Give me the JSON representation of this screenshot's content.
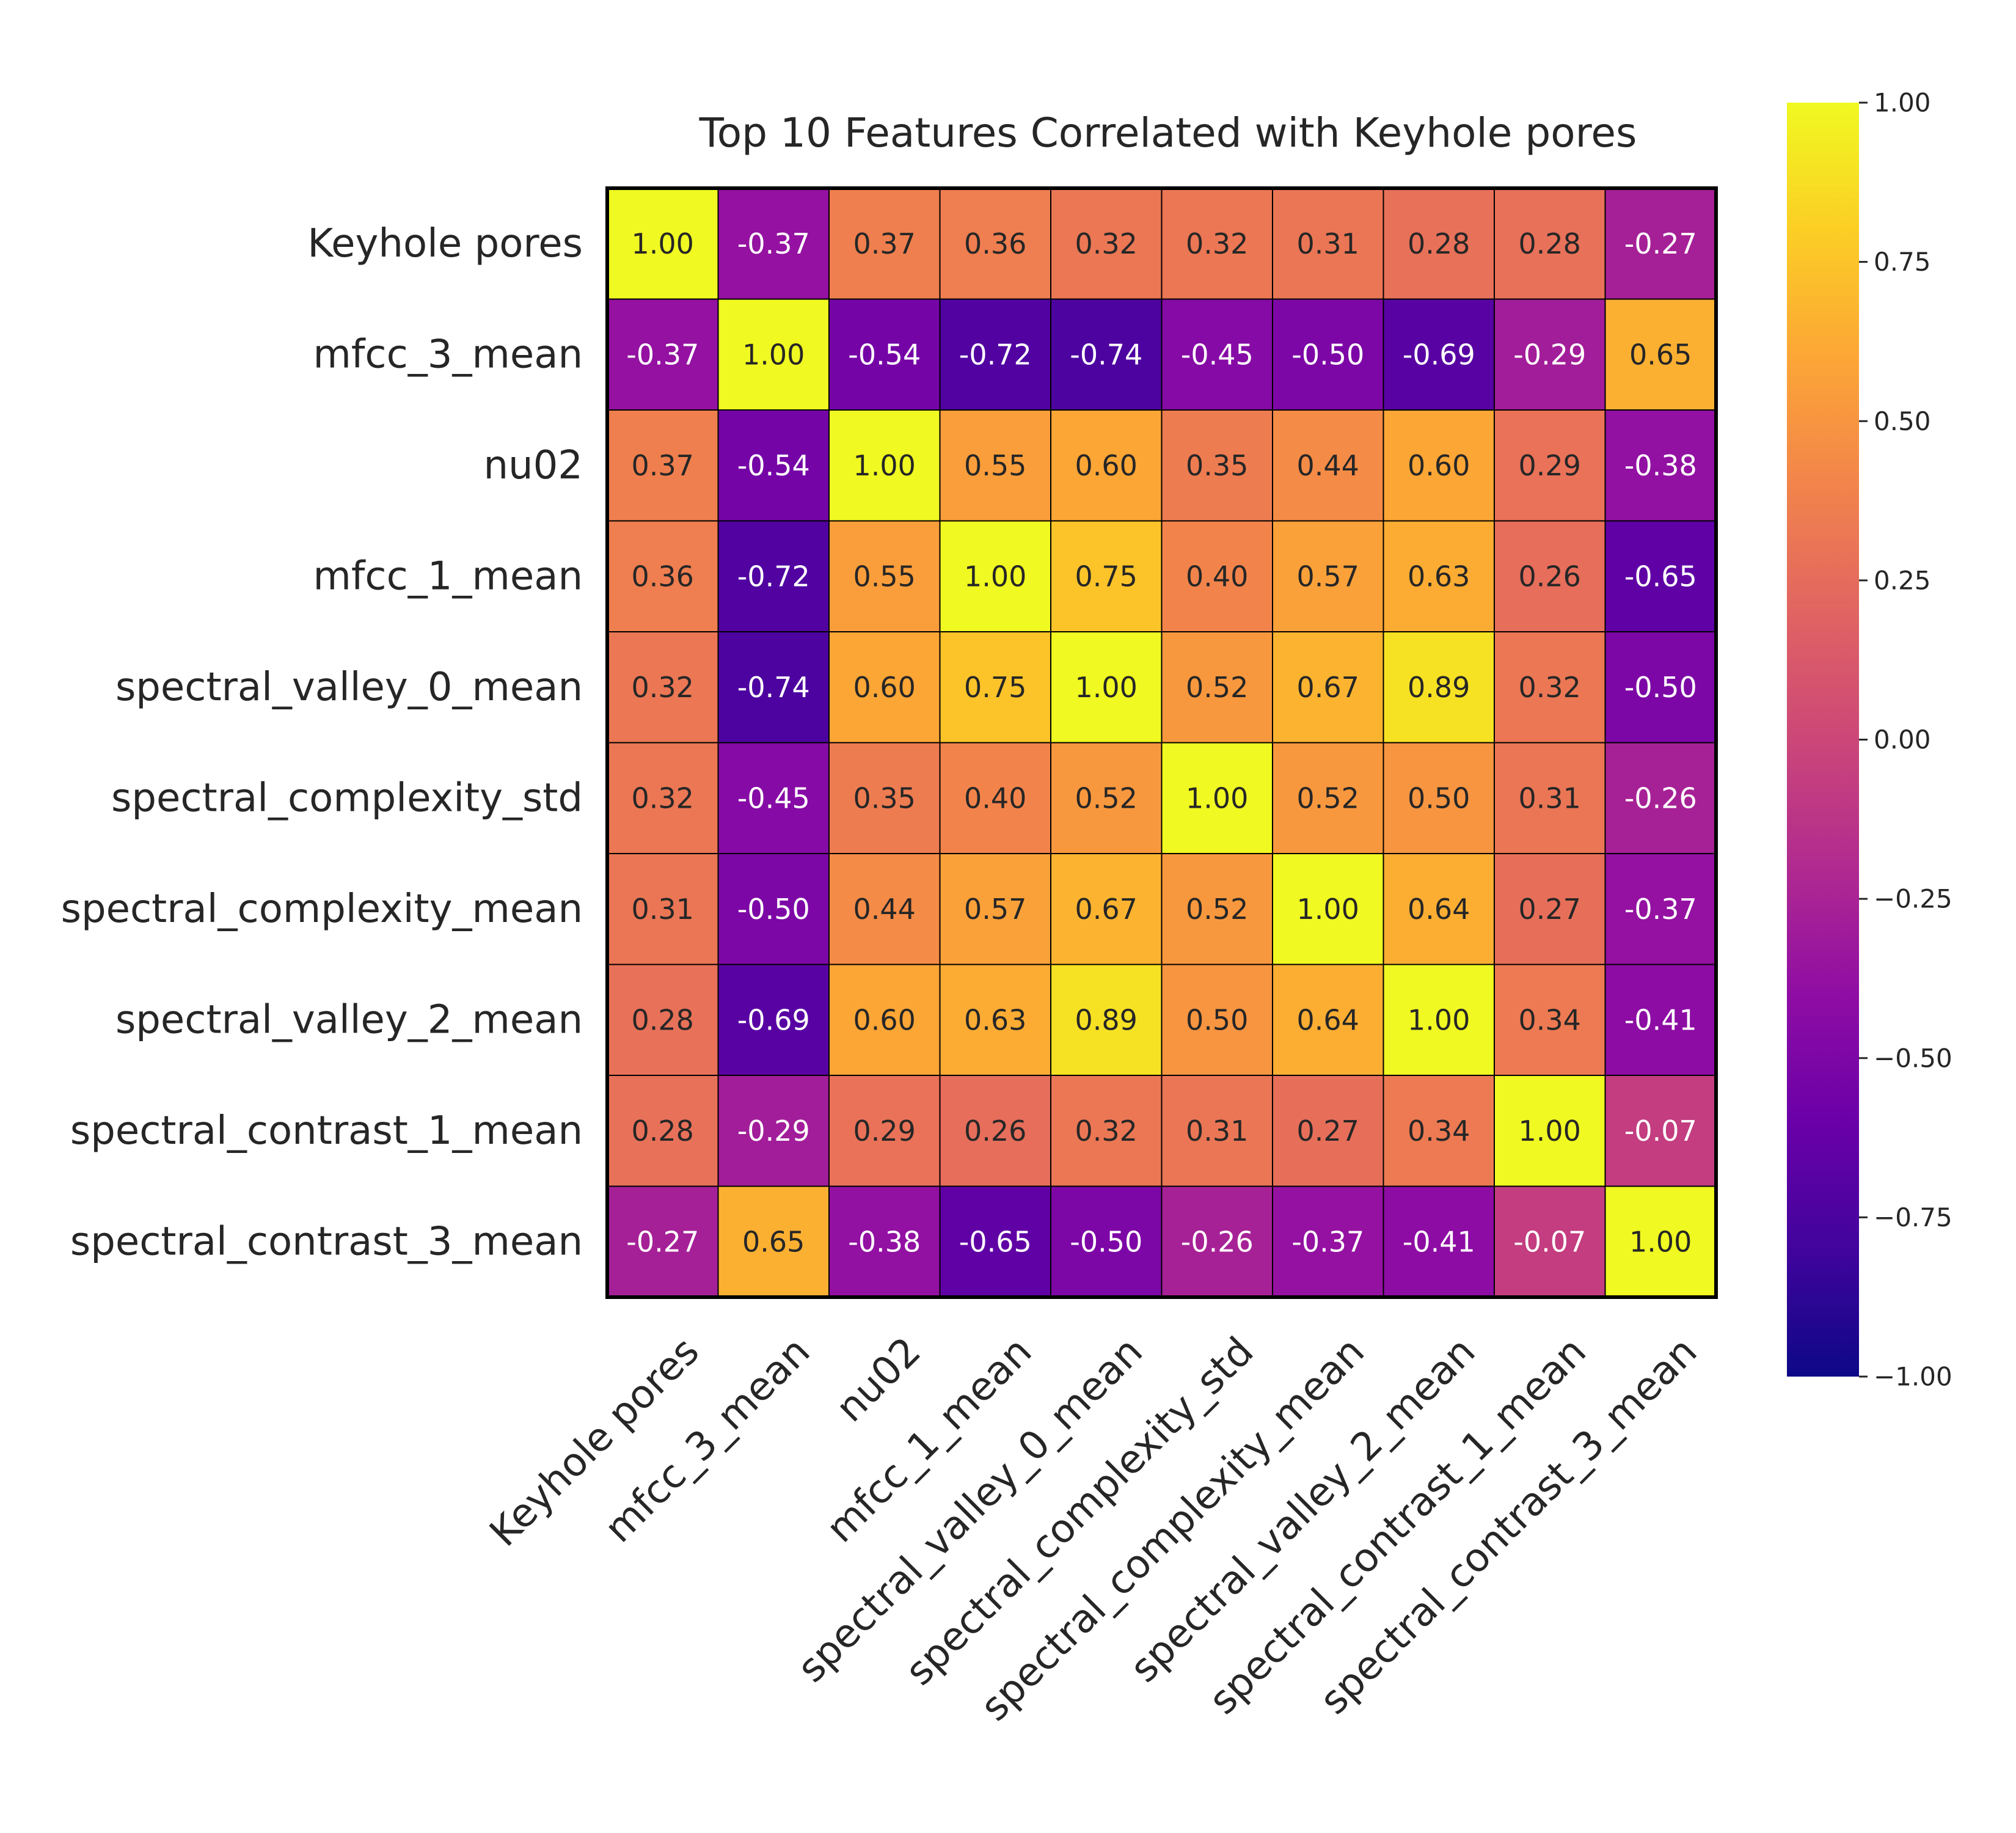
{
  "chart_data": {
    "type": "heatmap",
    "title": "Top 10 Features Correlated with Keyhole pores",
    "colormap": "plasma",
    "vmin": -1.0,
    "vmax": 1.0,
    "labels": [
      "Keyhole pores",
      "mfcc_3_mean",
      "nu02",
      "mfcc_1_mean",
      "spectral_valley_0_mean",
      "spectral_complexity_std",
      "spectral_complexity_mean",
      "spectral_valley_2_mean",
      "spectral_contrast_1_mean",
      "spectral_contrast_3_mean"
    ],
    "matrix": [
      [
        1.0,
        -0.37,
        0.37,
        0.36,
        0.32,
        0.32,
        0.31,
        0.28,
        0.28,
        -0.27
      ],
      [
        -0.37,
        1.0,
        -0.54,
        -0.72,
        -0.74,
        -0.45,
        -0.5,
        -0.69,
        -0.29,
        0.65
      ],
      [
        0.37,
        -0.54,
        1.0,
        0.55,
        0.6,
        0.35,
        0.44,
        0.6,
        0.29,
        -0.38
      ],
      [
        0.36,
        -0.72,
        0.55,
        1.0,
        0.75,
        0.4,
        0.57,
        0.63,
        0.26,
        -0.65
      ],
      [
        0.32,
        -0.74,
        0.6,
        0.75,
        1.0,
        0.52,
        0.67,
        0.89,
        0.32,
        -0.5
      ],
      [
        0.32,
        -0.45,
        0.35,
        0.4,
        0.52,
        1.0,
        0.52,
        0.5,
        0.31,
        -0.26
      ],
      [
        0.31,
        -0.5,
        0.44,
        0.57,
        0.67,
        0.52,
        1.0,
        0.64,
        0.27,
        -0.37
      ],
      [
        0.28,
        -0.69,
        0.6,
        0.63,
        0.89,
        0.5,
        0.64,
        1.0,
        0.34,
        -0.41
      ],
      [
        0.28,
        -0.29,
        0.29,
        0.26,
        0.32,
        0.31,
        0.27,
        0.34,
        1.0,
        -0.07
      ],
      [
        -0.27,
        0.65,
        -0.38,
        -0.65,
        -0.5,
        -0.26,
        -0.37,
        -0.41,
        -0.07,
        1.0
      ]
    ],
    "annotation_format": "0.00",
    "colorbar": {
      "ticks": [
        1.0,
        0.75,
        0.5,
        0.25,
        0.0,
        -0.25,
        -0.5,
        -0.75,
        -1.0
      ],
      "tick_labels": [
        "1.00",
        "0.75",
        "0.50",
        "0.25",
        "0.00",
        "−0.25",
        "−0.50",
        "−0.75",
        "−1.00"
      ]
    }
  }
}
